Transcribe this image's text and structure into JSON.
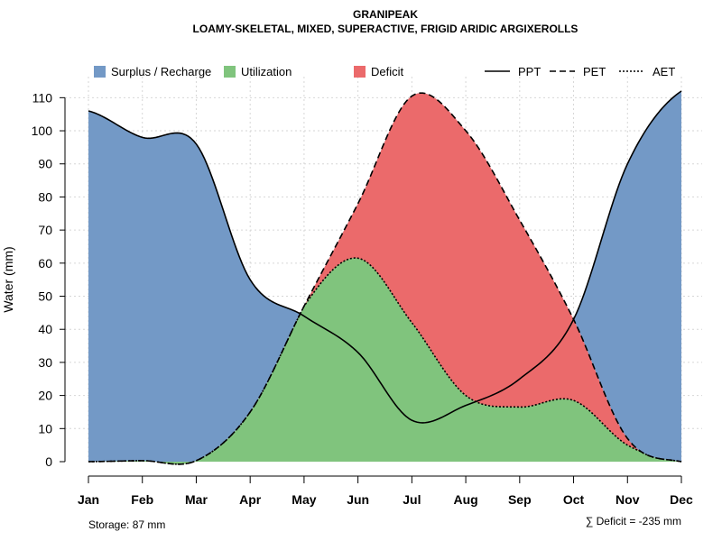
{
  "chart_data": {
    "type": "area",
    "title": "GRANIPEAK",
    "subtitle": "LOAMY-SKELETAL, MIXED, SUPERACTIVE, FRIGID ARIDIC ARGIXEROLLS",
    "ylabel": "Water (mm)",
    "xlabel": "",
    "ylim": [
      0,
      115
    ],
    "yticks": [
      0,
      10,
      20,
      30,
      40,
      50,
      60,
      70,
      80,
      90,
      100,
      110
    ],
    "categories": [
      "Jan",
      "Feb",
      "Mar",
      "Apr",
      "May",
      "Jun",
      "Jul",
      "Aug",
      "Sep",
      "Oct",
      "Nov",
      "Dec"
    ],
    "series": [
      {
        "name": "PPT",
        "style": "solid",
        "values": [
          106,
          98,
          96,
          55,
          44,
          33,
          12.5,
          17,
          25,
          43,
          90,
          112
        ]
      },
      {
        "name": "PET",
        "style": "dashed",
        "values": [
          0,
          0.3,
          0.3,
          15,
          47,
          78,
          110.5,
          100,
          73,
          43,
          7,
          0
        ]
      },
      {
        "name": "AET",
        "style": "dotted",
        "values": [
          0,
          0.3,
          0.3,
          15,
          47,
          61.5,
          42,
          20,
          16.5,
          18.5,
          5,
          0
        ]
      }
    ],
    "areas": [
      {
        "name": "Surplus / Recharge",
        "color": "#7399c6"
      },
      {
        "name": "Utilization",
        "color": "#80c47d"
      },
      {
        "name": "Deficit",
        "color": "#eb6a6b"
      }
    ],
    "legend": [
      "Surplus / Recharge",
      "Utilization",
      "Deficit",
      "PPT",
      "PET",
      "AET"
    ],
    "legend_placement": "top",
    "grid": true
  },
  "footer": {
    "storage": "Storage: 87 mm",
    "deficit": "∑ Deficit = -235 mm"
  }
}
